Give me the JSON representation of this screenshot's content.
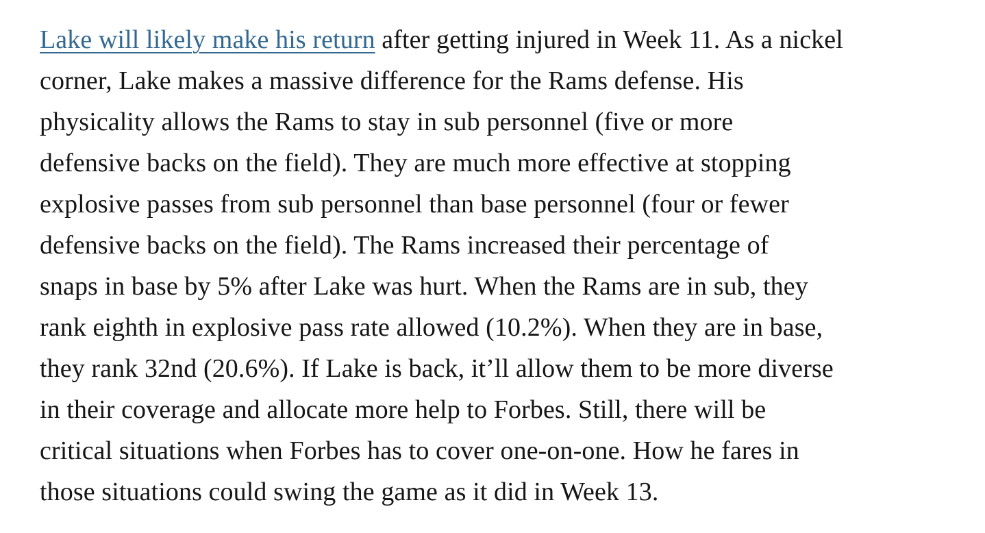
{
  "page": {
    "background_color": "#ffffff",
    "text_color": "#161616",
    "link_color": "#326891"
  },
  "paragraph": {
    "link_text": "Lake will likely make his return",
    "line_1_rest": " after getting injured in Week 11. As a nickel",
    "lines": [
      "corner, Lake makes a massive difference for the Rams defense. His",
      "physicality allows the Rams to stay in sub personnel (five or more",
      "defensive backs on the field). They are much more effective at stopping",
      "explosive passes from sub personnel than base personnel (four or fewer",
      "defensive backs on the field). The Rams increased their percentage of",
      "snaps in base by 5% after Lake was hurt. When the Rams are in sub, they",
      "rank eighth in explosive pass rate allowed (10.2%). When they are in base,",
      "they rank 32nd (20.6%). If Lake is back, it’ll allow them to be more diverse",
      "in their coverage and allocate more help to Forbes. Still, there will be",
      "critical situations when Forbes has to cover one-on-one. How he fares in",
      "those situations could swing the game as it did in Week 13."
    ]
  }
}
